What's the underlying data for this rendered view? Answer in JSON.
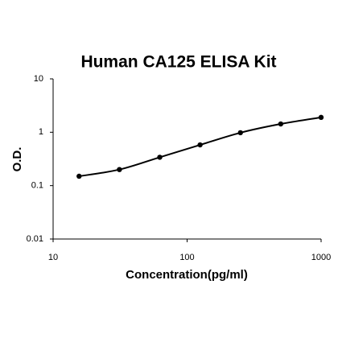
{
  "chart_data": {
    "type": "scatter",
    "title": "Human CA125 ELISA Kit",
    "x_label": "Concentration(pg/ml)",
    "y_label": "O.D.",
    "x": [
      15.625,
      31.25,
      62.5,
      125,
      250,
      500,
      1000
    ],
    "series": [
      {
        "color": "#000000",
        "values": [
          0.15,
          0.2,
          0.34,
          0.58,
          0.98,
          1.43,
          1.9
        ]
      }
    ],
    "x_log": true,
    "y_log": true,
    "xlim": [
      10,
      1000
    ],
    "ylim": [
      0.01,
      10
    ],
    "xticks": [
      10,
      100,
      1000
    ],
    "yticks": [
      0.01,
      0.1,
      1,
      10
    ],
    "fit_line": true
  }
}
